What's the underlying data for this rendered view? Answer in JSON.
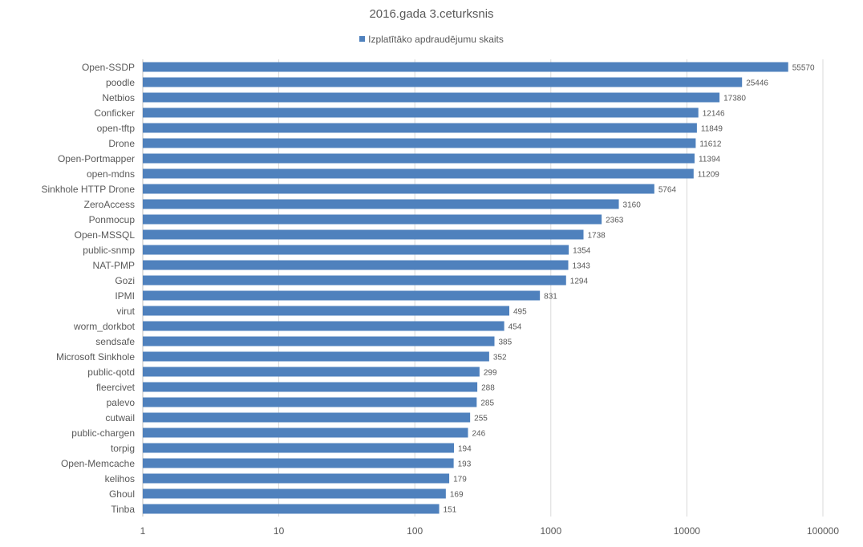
{
  "chart_data": {
    "type": "bar",
    "orientation": "horizontal",
    "title": "2016.gada 3.ceturksnis",
    "xscale": "log",
    "xlim": [
      1,
      100000
    ],
    "xticks": [
      "1",
      "10",
      "100",
      "1000",
      "10000",
      "100000"
    ],
    "xtick_values": [
      1,
      10,
      100,
      1000,
      10000,
      100000
    ],
    "grid": true,
    "legend_position": "top",
    "bar_color": "#4f81bd",
    "series": [
      {
        "name": "Izplatītāko apdraudējumu skaits",
        "values": [
          55570,
          25446,
          17380,
          12146,
          11849,
          11612,
          11394,
          11209,
          5764,
          3160,
          2363,
          1738,
          1354,
          1343,
          1294,
          831,
          495,
          454,
          385,
          352,
          299,
          288,
          285,
          255,
          246,
          194,
          193,
          179,
          169,
          151
        ]
      }
    ],
    "categories": [
      "Open-SSDP",
      "poodle",
      "Netbios",
      "Conficker",
      "open-tftp",
      "Drone",
      "Open-Portmapper",
      "open-mdns",
      "Sinkhole HTTP Drone",
      "ZeroAccess",
      "Ponmocup",
      "Open-MSSQL",
      "public-snmp",
      "NAT-PMP",
      "Gozi",
      "IPMI",
      "virut",
      "worm_dorkbot",
      "sendsafe",
      "Microsoft Sinkhole",
      "public-qotd",
      "fleercivet",
      "palevo",
      "cutwail",
      "public-chargen",
      "torpig",
      "Open-Memcache",
      "kelihos",
      "Ghoul",
      "Tinba"
    ]
  }
}
